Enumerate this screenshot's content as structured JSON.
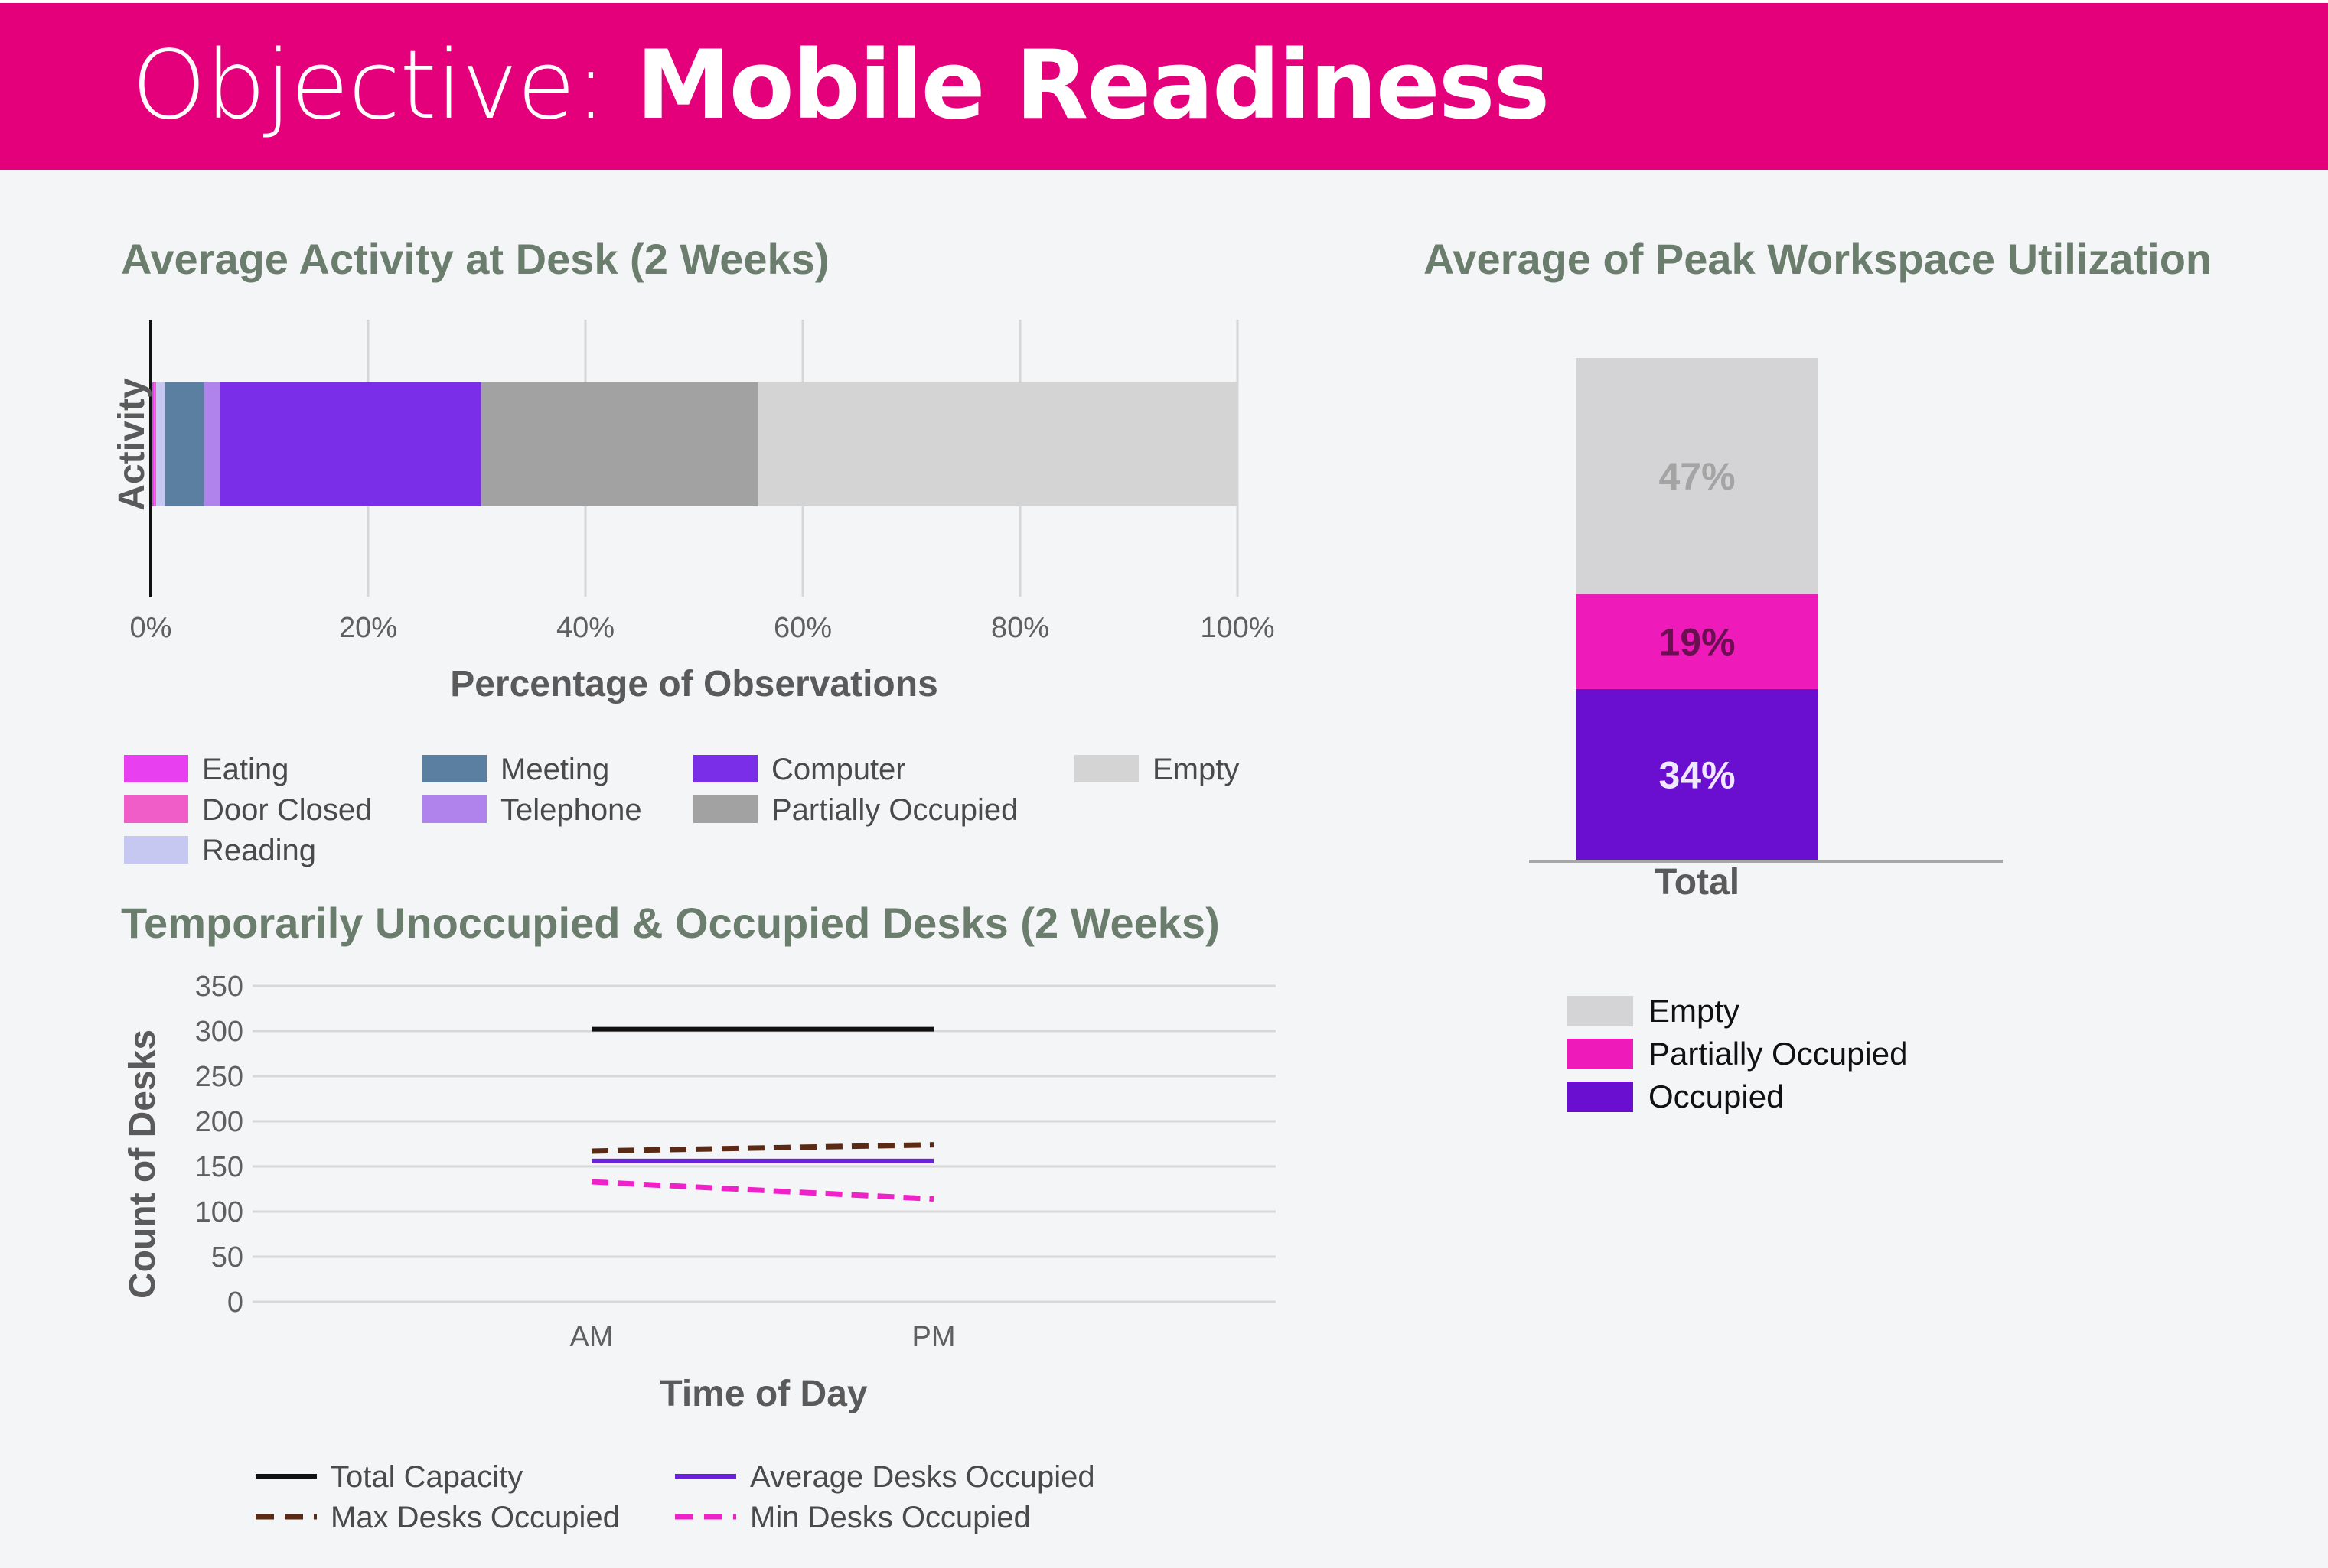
{
  "header": {
    "prefix": "Objective:",
    "title": "Mobile Readiness"
  },
  "chart_data": [
    {
      "id": "activity",
      "type": "bar",
      "orientation": "horizontal-stacked",
      "title": "Average Activity at Desk (2 Weeks)",
      "xlabel": "Percentage of Observations",
      "ylabel": "Activity",
      "xlim": [
        0,
        100
      ],
      "x_ticks": [
        "0%",
        "20%",
        "40%",
        "60%",
        "80%",
        "100%"
      ],
      "grid": true,
      "legend_position": "bottom",
      "series": [
        {
          "name": "Eating",
          "value": 0.3,
          "color": "#e840f0"
        },
        {
          "name": "Door Closed",
          "value": 0.2,
          "color": "#f05cc8"
        },
        {
          "name": "Reading",
          "value": 0.8,
          "color": "#c6c8f2"
        },
        {
          "name": "Meeting",
          "value": 3.6,
          "color": "#5a7fa0"
        },
        {
          "name": "Telephone",
          "value": 1.5,
          "color": "#b083ec"
        },
        {
          "name": "Computer",
          "value": 24,
          "color": "#7b2ee8"
        },
        {
          "name": "Partially Occupied",
          "value": 25.5,
          "color": "#a2a2a2"
        },
        {
          "name": "Empty",
          "value": 44.1,
          "color": "#d4d4d4"
        }
      ],
      "legend_layout": [
        [
          "Eating",
          "Door Closed",
          "Reading"
        ],
        [
          "Meeting",
          "Telephone"
        ],
        [
          "Computer",
          "Partially Occupied"
        ],
        [
          "Empty"
        ]
      ]
    },
    {
      "id": "utilization",
      "type": "bar",
      "orientation": "vertical-stacked",
      "title": "Average of Peak Workspace Utilization",
      "categories": [
        "Total"
      ],
      "ylim": [
        0,
        100
      ],
      "legend_position": "bottom",
      "series": [
        {
          "name": "Occupied",
          "value": 34,
          "label": "34%",
          "color": "#6a0fd0",
          "label_color": "#f0e8ff"
        },
        {
          "name": "Partially Occupied",
          "value": 19,
          "label": "19%",
          "color": "#ee1aba",
          "label_color": "#6a1050"
        },
        {
          "name": "Empty",
          "value": 47,
          "label": "47%",
          "color": "#d4d4d6",
          "label_color": "#a4a4a4"
        }
      ],
      "legend_order": [
        "Empty",
        "Partially Occupied",
        "Occupied"
      ]
    },
    {
      "id": "desks",
      "type": "line",
      "title": "Temporarily Unoccupied & Occupied Desks (2 Weeks)",
      "xlabel": "Time of Day",
      "ylabel": "Count of Desks",
      "categories": [
        "AM",
        "PM"
      ],
      "ylim": [
        0,
        350
      ],
      "y_ticks": [
        0,
        50,
        100,
        150,
        200,
        250,
        300,
        350
      ],
      "grid": true,
      "legend_position": "bottom",
      "series": [
        {
          "name": "Total Capacity",
          "values": [
            302,
            302
          ],
          "color": "#111111",
          "style": "solid"
        },
        {
          "name": "Max Desks Occupied",
          "values": [
            167,
            174
          ],
          "color": "#5a2a14",
          "style": "dashed"
        },
        {
          "name": "Average Desks Occupied",
          "values": [
            156,
            156
          ],
          "color": "#6a22d8",
          "style": "solid"
        },
        {
          "name": "Min Desks Occupied",
          "values": [
            133,
            114
          ],
          "color": "#ee22c8",
          "style": "dashed"
        }
      ],
      "legend_layout": [
        [
          "Total Capacity",
          "Max Desks Occupied"
        ],
        [
          "Average Desks Occupied",
          "Min Desks Occupied"
        ]
      ]
    }
  ]
}
